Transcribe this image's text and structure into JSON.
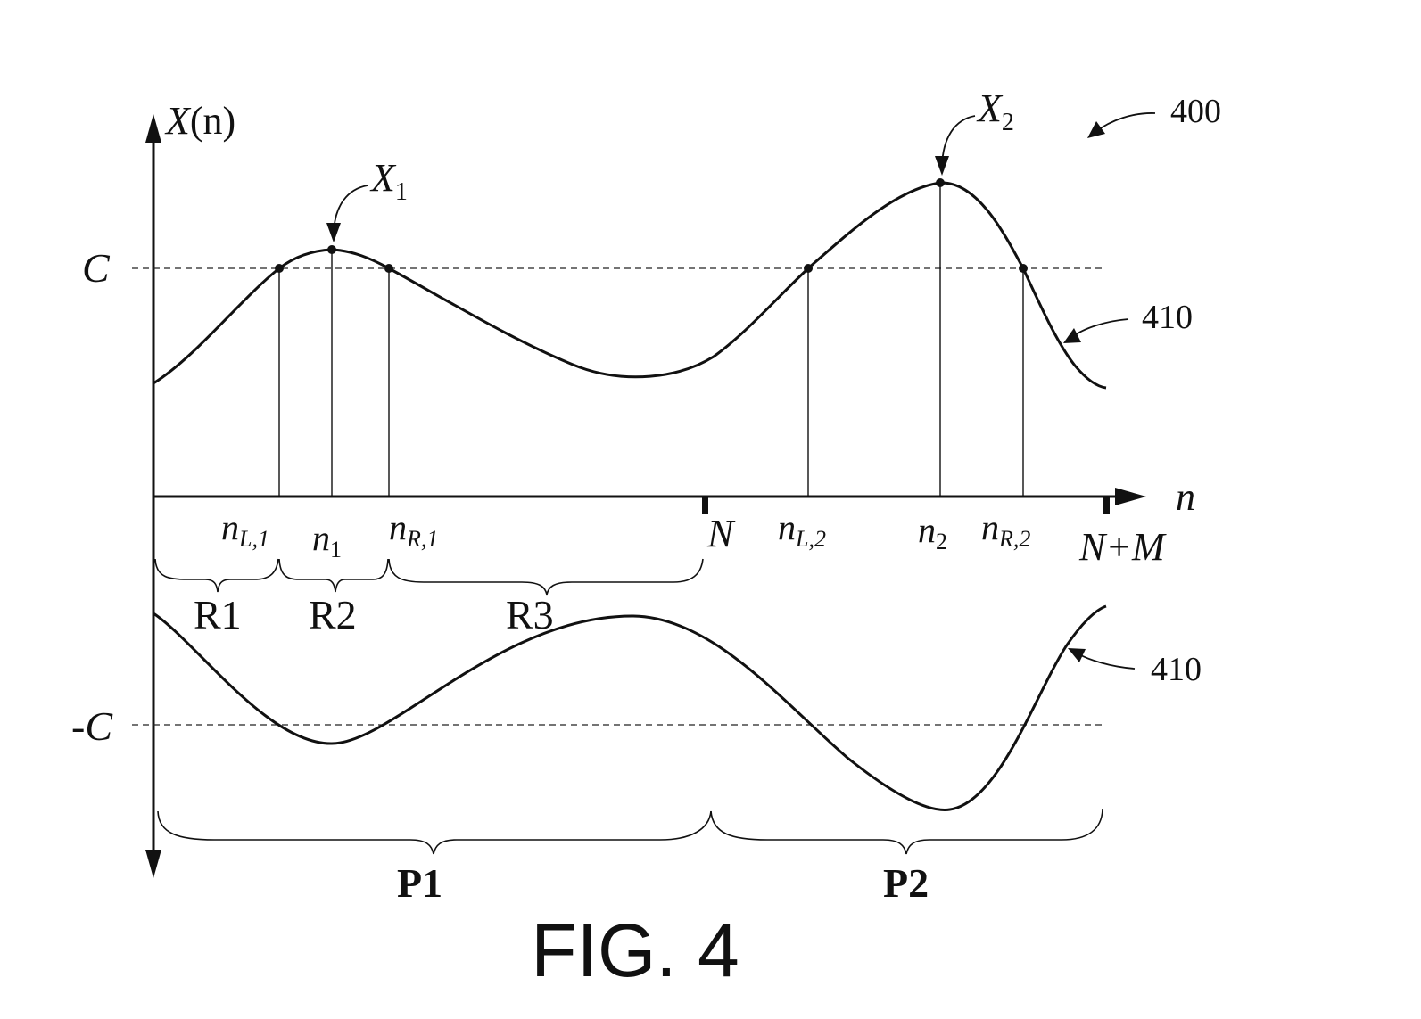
{
  "figure": {
    "caption": "FIG. 4",
    "ref_figure": "400",
    "ref_curve_upper": "410",
    "ref_curve_lower": "410"
  },
  "axes": {
    "y_label_main": "X",
    "y_label_paren": "(n)",
    "x_label": "n",
    "level_pos": "C",
    "level_neg": "-C"
  },
  "peaks": [
    {
      "label": "X",
      "sub": "1"
    },
    {
      "label": "X",
      "sub": "2"
    }
  ],
  "ticks": [
    {
      "main": "n",
      "sub": "L,1"
    },
    {
      "main": "n",
      "sub": "1"
    },
    {
      "main": "n",
      "sub": "R,1"
    },
    {
      "main": "N",
      "sub": ""
    },
    {
      "main": "n",
      "sub": "L,2"
    },
    {
      "main": "n",
      "sub": "2"
    },
    {
      "main": "n",
      "sub": "R,2"
    },
    {
      "main": "N+M",
      "sub": ""
    }
  ],
  "regions": [
    "R1",
    "R2",
    "R3"
  ],
  "periods": [
    "P1",
    "P2"
  ]
}
